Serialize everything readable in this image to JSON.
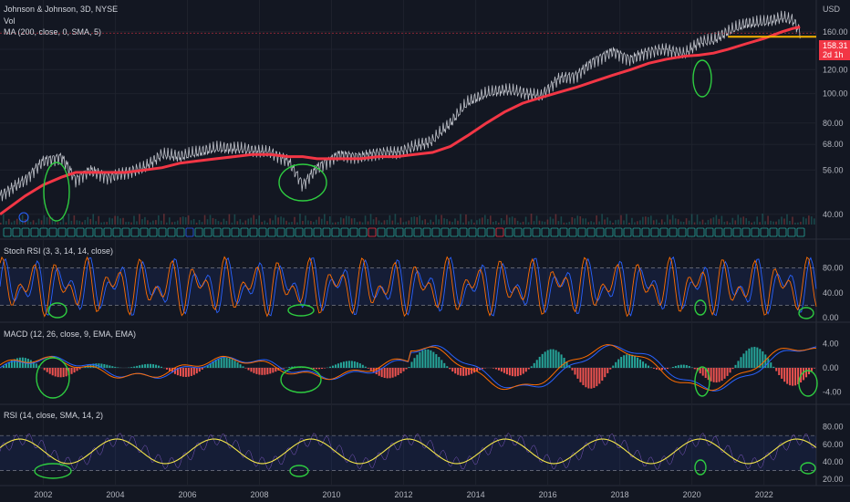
{
  "header": {
    "symbol_line": "Johnson & Johnson, 3D, NYSE",
    "vol_label": "Vol",
    "ma_label": "MA (200, close, 0, SMA, 5)"
  },
  "panels": {
    "stoch_label": "Stoch RSI (3, 3, 14, 14, close)",
    "macd_label": "MACD (12, 26, close, 9, EMA, EMA)",
    "rsi_label": "RSI (14, close, SMA, 14, 2)"
  },
  "price_tag": {
    "value": "158.31",
    "countdown": "2d 1h"
  },
  "currency": "USD",
  "colors": {
    "background": "#131722",
    "price_line": "#d1d4dc",
    "ma_line": "#f23645",
    "support_line": "#f5b400",
    "stoch_k": "#2962ff",
    "stoch_d": "#ff6d00",
    "macd_line": "#2962ff",
    "signal_line": "#ff6d00",
    "hist_up": "#26a69a",
    "hist_down": "#ef5350",
    "rsi_line": "#7e57c2",
    "rsi_ma": "#f5e64a",
    "annotation": "#2ecc40"
  },
  "chart_data": [
    {
      "type": "line",
      "title": "Johnson & Johnson, 3D, NYSE",
      "x": [
        2000.8,
        2001.5,
        2002.0,
        2002.5,
        2002.9,
        2003.3,
        2003.8,
        2004.3,
        2004.8,
        2005.3,
        2005.8,
        2006.3,
        2006.8,
        2007.3,
        2007.8,
        2008.3,
        2008.8,
        2009.2,
        2009.6,
        2010.2,
        2010.8,
        2011.3,
        2011.8,
        2012.3,
        2012.8,
        2013.3,
        2013.8,
        2014.3,
        2014.8,
        2015.3,
        2015.8,
        2016.3,
        2016.8,
        2017.3,
        2017.8,
        2018.3,
        2018.8,
        2019.3,
        2019.8,
        2020.2,
        2020.6,
        2021.0,
        2021.5,
        2022.0,
        2022.5,
        2022.8,
        2023.0
      ],
      "series": [
        {
          "values": [
            46,
            52,
            60,
            62,
            52,
            56,
            53,
            55,
            57,
            63,
            62,
            64,
            66,
            66,
            65,
            64,
            60,
            50,
            57,
            63,
            62,
            64,
            64,
            67,
            70,
            80,
            94,
            100,
            103,
            101,
            98,
            112,
            115,
            129,
            138,
            130,
            138,
            140,
            135,
            148,
            150,
            160,
            170,
            172,
            178,
            175,
            160
          ]
        },
        {
          "values": [
            40,
            46,
            50,
            53,
            55,
            55,
            55,
            55,
            56,
            57,
            59,
            60,
            61,
            62,
            63,
            63,
            62,
            62,
            61,
            61,
            61,
            62,
            62,
            63,
            64,
            67,
            73,
            80,
            87,
            93,
            97,
            101,
            105,
            110,
            115,
            120,
            126,
            130,
            133,
            134,
            136,
            140,
            146,
            152,
            160,
            164,
            166
          ]
        }
      ],
      "support_level": 154,
      "yticks": [
        40,
        56,
        68,
        80,
        100,
        120,
        140,
        160
      ],
      "xticks": [
        "2002",
        "2004",
        "2006",
        "2008",
        "2010",
        "2012",
        "2014",
        "2016",
        "2018",
        "2020",
        "2022"
      ],
      "ylim": [
        36,
        190
      ],
      "scale": "log"
    },
    {
      "type": "line",
      "title": "Stoch RSI (3, 3, 14, 14, close)",
      "yticks": [
        "80.00",
        "40.00",
        "0.00"
      ],
      "bands": [
        20,
        80
      ],
      "ylim": [
        0,
        100
      ]
    },
    {
      "type": "line",
      "title": "MACD (12, 26, close, 9, EMA, EMA)",
      "yticks": [
        "4.00",
        "0.00",
        "-4.00"
      ],
      "ylim": [
        -5,
        5
      ]
    },
    {
      "type": "line",
      "title": "RSI (14, close, SMA, 14, 2)",
      "yticks": [
        "80.00",
        "60.00",
        "40.00",
        "20.00"
      ],
      "bands": [
        30,
        70
      ],
      "ylim": [
        15,
        90
      ]
    }
  ]
}
